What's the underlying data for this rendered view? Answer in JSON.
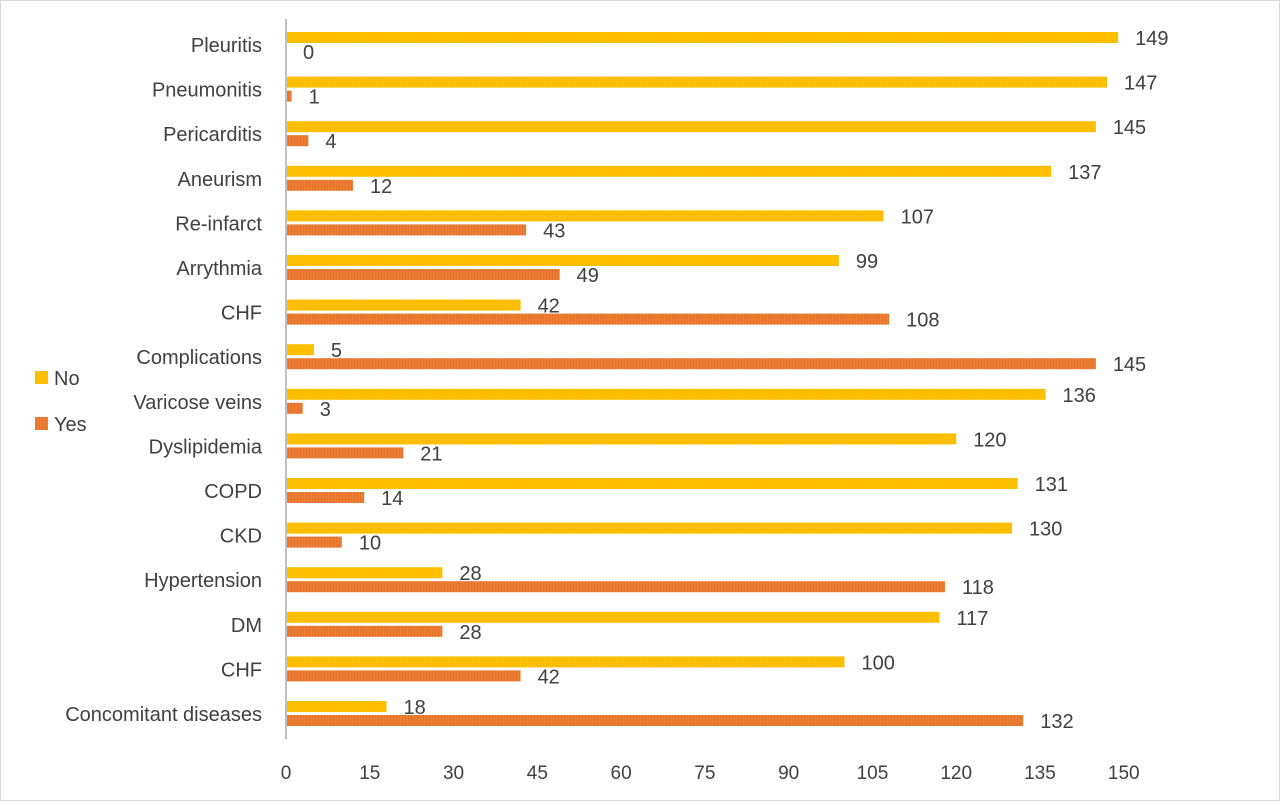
{
  "chart_data": {
    "type": "bar",
    "orientation": "horizontal",
    "categories": [
      "Pleuritis",
      "Pneumonitis",
      "Pericarditis",
      "Aneurism",
      "Re-infarct",
      "Arrythmia",
      "CHF",
      "Complications",
      "Varicose veins",
      "Dyslipidemia",
      "COPD",
      "CKD",
      "Hypertension",
      "DM",
      "CHF",
      "Concomitant diseases"
    ],
    "series": [
      {
        "name": "No",
        "color": "#ffc000",
        "values": [
          149,
          147,
          145,
          137,
          107,
          99,
          42,
          5,
          136,
          120,
          131,
          130,
          28,
          117,
          100,
          18
        ]
      },
      {
        "name": "Yes",
        "color": "#ed7d31",
        "values": [
          0,
          1,
          4,
          12,
          43,
          49,
          108,
          145,
          3,
          21,
          14,
          10,
          118,
          28,
          42,
          132
        ]
      }
    ],
    "xticks": [
      "0",
      "15",
      "30",
      "45",
      "60",
      "75",
      "90",
      "105",
      "120",
      "135",
      "150"
    ],
    "xlim": [
      0,
      150
    ],
    "grid": false,
    "legend_position": "left",
    "title": "",
    "xlabel": "",
    "ylabel": ""
  }
}
